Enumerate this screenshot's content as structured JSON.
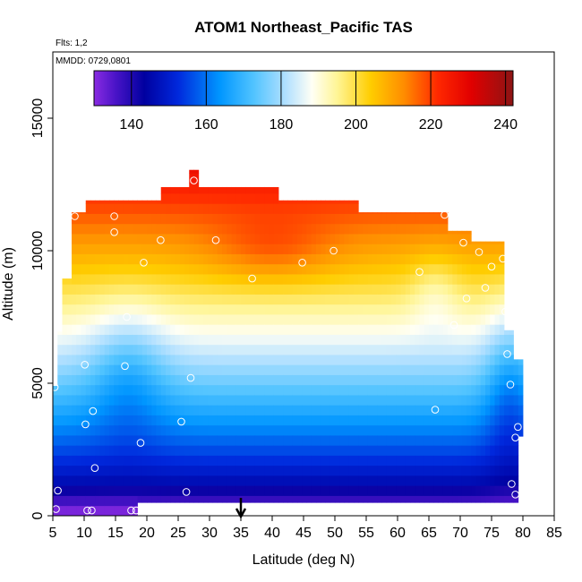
{
  "chart_data": {
    "type": "heatmap",
    "title": "ATOM1 Northeast_Pacific TAS",
    "annotations": {
      "flights": "Flts: 1,2",
      "dates": "MMDD: 0729,0801"
    },
    "xlabel": "Latitude (deg N)",
    "ylabel": "Altitude (m)",
    "xlim": [
      5,
      85
    ],
    "ylim": [
      0,
      17500
    ],
    "x_ticks": [
      "5",
      "10",
      "15",
      "20",
      "25",
      "30",
      "35",
      "40",
      "45",
      "50",
      "55",
      "60",
      "65",
      "70",
      "75",
      "80",
      "85"
    ],
    "y_ticks": [
      "0",
      "5000",
      "10000",
      "15000"
    ],
    "colorbar": {
      "range": [
        130,
        242
      ],
      "tick_labels": [
        "140",
        "160",
        "180",
        "200",
        "220",
        "240"
      ],
      "placement": "top-inside"
    },
    "arrow_marker_latitude": 35,
    "grid": false,
    "sample_points": [
      {
        "lat": 5.5,
        "alt": 250
      },
      {
        "lat": 10.5,
        "alt": 200
      },
      {
        "lat": 11.2,
        "alt": 200
      },
      {
        "lat": 17.5,
        "alt": 200
      },
      {
        "lat": 18.3,
        "alt": 200
      },
      {
        "lat": 5.8,
        "alt": 950
      },
      {
        "lat": 26.3,
        "alt": 900
      },
      {
        "lat": 78.2,
        "alt": 1200
      },
      {
        "lat": 78.8,
        "alt": 800
      },
      {
        "lat": 11.7,
        "alt": 1800
      },
      {
        "lat": 19.0,
        "alt": 2750
      },
      {
        "lat": 78.8,
        "alt": 2950
      },
      {
        "lat": 79.2,
        "alt": 3350
      },
      {
        "lat": 10.2,
        "alt": 3450
      },
      {
        "lat": 11.4,
        "alt": 3950
      },
      {
        "lat": 25.5,
        "alt": 3550
      },
      {
        "lat": 66.0,
        "alt": 4000
      },
      {
        "lat": 5.3,
        "alt": 4850
      },
      {
        "lat": 27.0,
        "alt": 5200
      },
      {
        "lat": 78.0,
        "alt": 4950
      },
      {
        "lat": 10.1,
        "alt": 5700
      },
      {
        "lat": 16.5,
        "alt": 5650
      },
      {
        "lat": 77.5,
        "alt": 6100
      },
      {
        "lat": 16.8,
        "alt": 7500
      },
      {
        "lat": 69.0,
        "alt": 7200
      },
      {
        "lat": 77.2,
        "alt": 7700
      },
      {
        "lat": 71.0,
        "alt": 8200
      },
      {
        "lat": 74.0,
        "alt": 8600
      },
      {
        "lat": 36.8,
        "alt": 8950
      },
      {
        "lat": 63.5,
        "alt": 9200
      },
      {
        "lat": 19.5,
        "alt": 9550
      },
      {
        "lat": 44.8,
        "alt": 9550
      },
      {
        "lat": 75.0,
        "alt": 9400
      },
      {
        "lat": 76.8,
        "alt": 9700
      },
      {
        "lat": 49.8,
        "alt": 10000
      },
      {
        "lat": 73.0,
        "alt": 9950
      },
      {
        "lat": 22.2,
        "alt": 10400
      },
      {
        "lat": 31.0,
        "alt": 10400
      },
      {
        "lat": 70.5,
        "alt": 10300
      },
      {
        "lat": 14.8,
        "alt": 10700
      },
      {
        "lat": 8.5,
        "alt": 11300
      },
      {
        "lat": 14.8,
        "alt": 11300
      },
      {
        "lat": 67.5,
        "alt": 11350
      },
      {
        "lat": 27.5,
        "alt": 12650
      }
    ]
  }
}
